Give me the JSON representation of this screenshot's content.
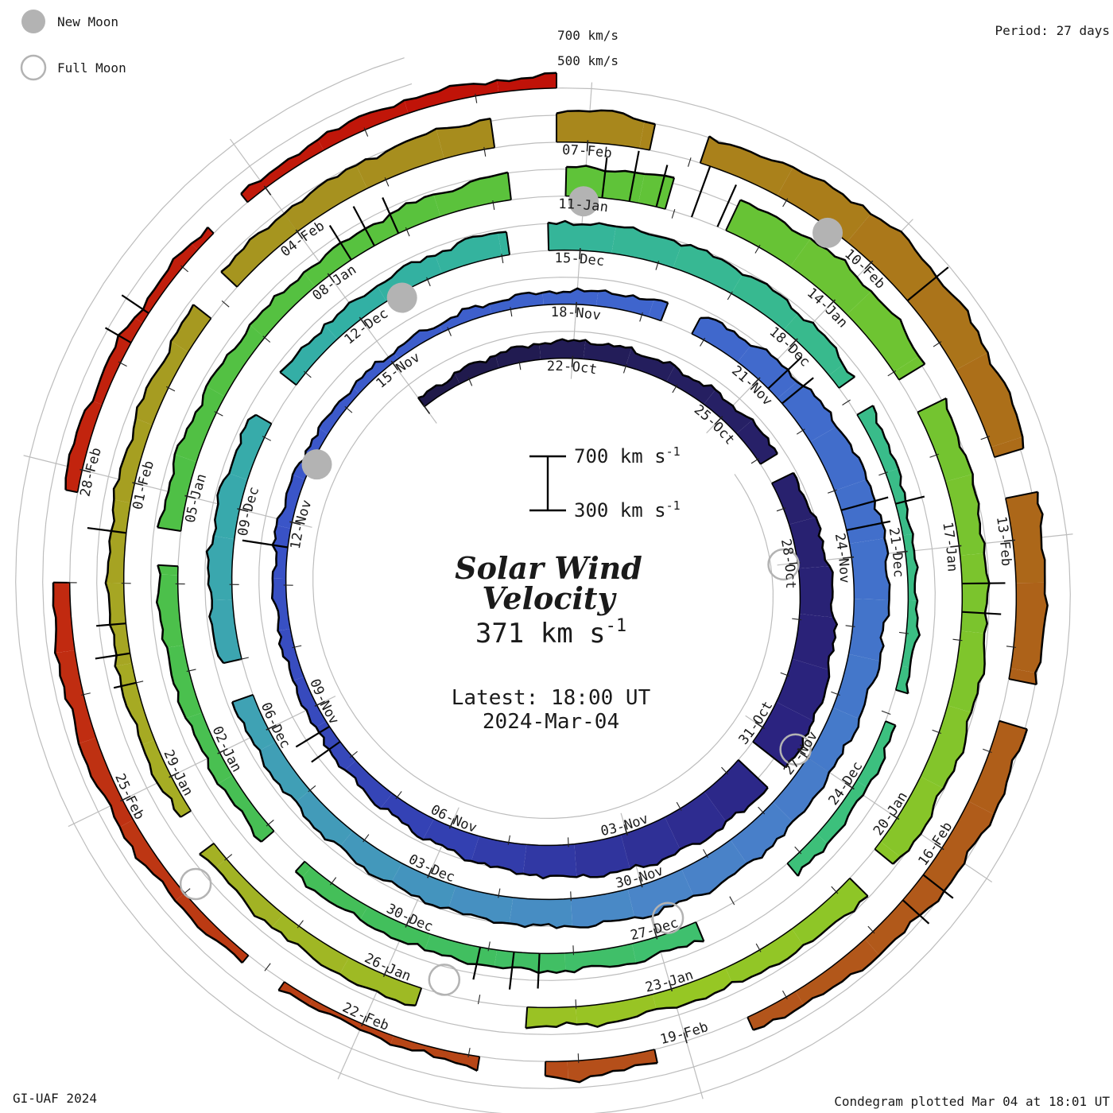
{
  "legend": {
    "new_label": "New Moon",
    "full_label": "Full Moon",
    "moon_color": "#b3b3b3"
  },
  "header": {
    "period_label": "Period: 27 days"
  },
  "axis": {
    "label_700": "700 km/s",
    "label_500": "500 km/s"
  },
  "scalebar": {
    "top": "700 km s",
    "bottom": "300 km s",
    "sup": "-1"
  },
  "center": {
    "title1": "Solar Wind",
    "title2": "Velocity",
    "value": "371 km s",
    "value_sup": "-1",
    "latest1": "Latest: 18:00 UT",
    "latest2": "2024-Mar-04",
    "accent": "#f4332a"
  },
  "footer": {
    "left": "GI-UAF 2024",
    "right": "Condegram plotted Mar 04 at 18:01 UT"
  },
  "chart_data": {
    "type": "line",
    "subtype": "polar_spiral_condegram",
    "title": "Solar Wind Velocity",
    "units": "km/s",
    "period_days": 27,
    "baseline_value": 300,
    "rho_range": [
      300,
      700
    ],
    "gridline_values": [
      500,
      700
    ],
    "start_date": "2023-10-19",
    "latest_time": "2024-03-04 18:00 UT",
    "latest_value_kms": 371,
    "daily_velocity": [
      360,
      385,
      410,
      430,
      425,
      415,
      430,
      455,
      480,
      520,
      560,
      600,
      615,
      590,
      585,
      570,
      540,
      505,
      465,
      430,
      405,
      390,
      385,
      390,
      400,
      380,
      370,
      365,
      370,
      385,
      400,
      420,
      455,
      490,
      530,
      560,
      565,
      540,
      515,
      505,
      520,
      530,
      525,
      505,
      490,
      480,
      465,
      450,
      450,
      460,
      470,
      465,
      450,
      435,
      430,
      450,
      480,
      505,
      495,
      485,
      470,
      430,
      390,
      360,
      370,
      385,
      395,
      410,
      425,
      435,
      430,
      425,
      420,
      415,
      410,
      412,
      430,
      445,
      455,
      445,
      435,
      430,
      455,
      485,
      510,
      530,
      550,
      560,
      530,
      500,
      480,
      488,
      495,
      500,
      475,
      450,
      430,
      440,
      450,
      450,
      430,
      410,
      400,
      408,
      415,
      420,
      435,
      452,
      470,
      495,
      520,
      540,
      480,
      540,
      600,
      580,
      550,
      520,
      510,
      505,
      500,
      460,
      415,
      380,
      430,
      380,
      340,
      360,
      390,
      420,
      430,
      425,
      410,
      385,
      365,
      370,
      400,
      390
    ],
    "date_labels": [
      [
        3,
        "22-Oct"
      ],
      [
        6,
        "25-Oct"
      ],
      [
        9,
        "28-Oct"
      ],
      [
        12,
        "31-Oct"
      ],
      [
        15,
        "03-Nov"
      ],
      [
        18,
        "06-Nov"
      ],
      [
        21,
        "09-Nov"
      ],
      [
        24,
        "12-Nov"
      ],
      [
        27,
        "15-Nov"
      ],
      [
        30,
        "18-Nov"
      ],
      [
        33,
        "21-Nov"
      ],
      [
        36,
        "24-Nov"
      ],
      [
        39,
        "27-Nov"
      ],
      [
        42,
        "30-Nov"
      ],
      [
        45,
        "03-Dec"
      ],
      [
        48,
        "06-Dec"
      ],
      [
        51,
        "09-Dec"
      ],
      [
        54,
        "12-Dec"
      ],
      [
        57,
        "15-Dec"
      ],
      [
        60,
        "18-Dec"
      ],
      [
        63,
        "21-Dec"
      ],
      [
        66,
        "24-Dec"
      ],
      [
        69,
        "27-Dec"
      ],
      [
        72,
        "30-Dec"
      ],
      [
        75,
        "02-Jan"
      ],
      [
        78,
        "05-Jan"
      ],
      [
        81,
        "08-Jan"
      ],
      [
        84,
        "11-Jan"
      ],
      [
        87,
        "14-Jan"
      ],
      [
        90,
        "17-Jan"
      ],
      [
        93,
        "20-Jan"
      ],
      [
        96,
        "23-Jan"
      ],
      [
        99,
        "26-Jan"
      ],
      [
        102,
        "29-Jan"
      ],
      [
        105,
        "01-Feb"
      ],
      [
        108,
        "04-Feb"
      ],
      [
        111,
        "07-Feb"
      ],
      [
        114,
        "10-Feb"
      ],
      [
        117,
        "13-Feb"
      ],
      [
        120,
        "16-Feb"
      ],
      [
        123,
        "19-Feb"
      ],
      [
        126,
        "22-Feb"
      ],
      [
        129,
        "25-Feb"
      ],
      [
        132,
        "28-Feb"
      ]
    ],
    "gaps": [
      [
        7.1,
        0.3
      ],
      [
        12.3,
        0.3
      ],
      [
        31.4,
        0.35
      ],
      [
        48.6,
        0.35
      ],
      [
        52.3,
        0.5
      ],
      [
        56.2,
        0.4
      ],
      [
        60.9,
        0.3
      ],
      [
        64.8,
        0.3
      ],
      [
        67.3,
        1.2
      ],
      [
        73.5,
        0.4
      ],
      [
        77.2,
        0.3
      ],
      [
        83.2,
        0.5
      ],
      [
        84.9,
        0.6
      ],
      [
        88.1,
        0.35
      ],
      [
        93.4,
        0.3
      ],
      [
        97.5,
        1.0
      ],
      [
        101.2,
        0.35
      ],
      [
        106.8,
        0.3
      ],
      [
        110.1,
        0.5
      ],
      [
        111.6,
        0.4
      ],
      [
        116.2,
        0.35
      ],
      [
        118.3,
        0.3
      ],
      [
        122.4,
        0.8
      ],
      [
        124.3,
        0.5
      ],
      [
        126.8,
        0.35
      ],
      [
        131.0,
        0.7
      ],
      [
        134.4,
        0.3
      ]
    ],
    "spikes": [
      [
        20.3,
        560
      ],
      [
        20.6,
        590
      ],
      [
        23.6,
        640
      ],
      [
        33.2,
        640
      ],
      [
        33.5,
        600
      ],
      [
        35.3,
        660
      ],
      [
        35.6,
        630
      ],
      [
        62.4,
        520
      ],
      [
        70.4,
        560
      ],
      [
        70.7,
        580
      ],
      [
        71.1,
        545
      ],
      [
        81.3,
        600
      ],
      [
        81.6,
        630
      ],
      [
        81.9,
        590
      ],
      [
        84.2,
        600
      ],
      [
        84.5,
        680
      ],
      [
        84.8,
        620
      ],
      [
        85.2,
        700
      ],
      [
        85.5,
        640
      ],
      [
        90.4,
        620
      ],
      [
        90.7,
        590
      ],
      [
        103.0,
        470
      ],
      [
        103.3,
        560
      ],
      [
        103.6,
        520
      ],
      [
        104.5,
        590
      ],
      [
        114.5,
        690
      ],
      [
        120.3,
        580
      ],
      [
        120.6,
        560
      ],
      [
        133.2,
        520
      ],
      [
        133.5,
        540
      ]
    ],
    "color_stops": [
      [
        0,
        "#1f1847"
      ],
      [
        6,
        "#262065"
      ],
      [
        12,
        "#2b2380"
      ],
      [
        18,
        "#3340b2"
      ],
      [
        24,
        "#3a54c8"
      ],
      [
        30,
        "#3f64cd"
      ],
      [
        36,
        "#4270cb"
      ],
      [
        42,
        "#4a86c8"
      ],
      [
        48,
        "#3fa2b4"
      ],
      [
        54,
        "#32b0a4"
      ],
      [
        60,
        "#38ba8e"
      ],
      [
        66,
        "#3cc07e"
      ],
      [
        72,
        "#42bf5c"
      ],
      [
        78,
        "#4fc046"
      ],
      [
        84,
        "#5ec339"
      ],
      [
        90,
        "#79c42e"
      ],
      [
        96,
        "#97c724"
      ],
      [
        102,
        "#a6ad24"
      ],
      [
        108,
        "#a6931f"
      ],
      [
        113,
        "#aa7f1a"
      ],
      [
        118,
        "#ad6119"
      ],
      [
        123,
        "#b4531b"
      ],
      [
        127,
        "#ba3d14"
      ],
      [
        131,
        "#c22810"
      ],
      [
        137,
        "#c01208"
      ]
    ],
    "moons": {
      "new_days": [
        25,
        54.6,
        84,
        113.5
      ],
      "full_days": [
        9,
        39,
        68.8,
        98.4,
        128
      ]
    },
    "legend_position": "top-left",
    "grid": true
  }
}
